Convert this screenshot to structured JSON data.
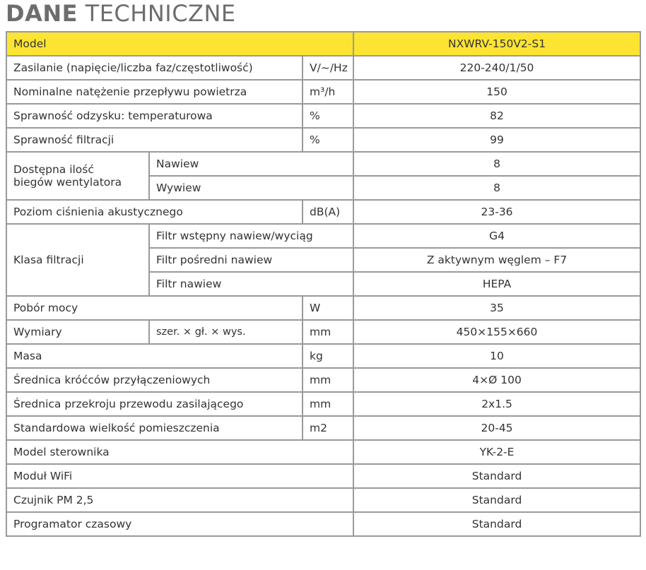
{
  "title": {
    "bold": "DANE",
    "rest": "TECHNICZNE"
  },
  "header": {
    "label": "Model",
    "value": "NXWRV-150V2-S1",
    "color": "#fde432"
  },
  "rows": {
    "zasilanie": {
      "label": "Zasilanie (napięcie/liczba faz/częstotliwość)",
      "unit": "V/~/Hz",
      "value": "220-240/1/50"
    },
    "przeplyw": {
      "label": "Nominalne natężenie przepływu powietrza",
      "unit": "m³/h",
      "value": "150"
    },
    "sprawnosc_temp": {
      "label": "Sprawność odzysku: temperaturowa",
      "unit": "%",
      "value": "82"
    },
    "sprawnosc_filtr": {
      "label": "Sprawność filtracji",
      "unit": "%",
      "value": "99"
    },
    "biegi": {
      "label": "Dostępna ilość biegów wentylatora",
      "nawiew": {
        "label": "Nawiew",
        "value": "8"
      },
      "wywiew": {
        "label": "Wywiew",
        "value": "8"
      }
    },
    "cisnienie": {
      "label": "Poziom ciśnienia akustycznego",
      "unit": "dB(A)",
      "value": "23-36"
    },
    "filtracja": {
      "label": "Klasa filtracji",
      "f1": {
        "label": "Filtr wstępny nawiew/wyciąg",
        "value": "G4"
      },
      "f2": {
        "label": "Filtr pośredni nawiew",
        "value": "Z aktywnym węglem – F7"
      },
      "f3": {
        "label": "Filtr nawiew",
        "value": "HEPA"
      }
    },
    "pobor": {
      "label": "Pobór mocy",
      "unit": "W",
      "value": "35"
    },
    "wymiary": {
      "label": "Wymiary",
      "sub": "szer. × gł. × wys.",
      "unit": "mm",
      "value": "450×155×660"
    },
    "masa": {
      "label": "Masa",
      "unit": "kg",
      "value": "10"
    },
    "krocce": {
      "label": "Średnica króćców przyłączeniowych",
      "unit": "mm",
      "value": "4×Ø 100"
    },
    "przewod": {
      "label": "Średnica przekroju przewodu zasilającego",
      "unit": "mm",
      "value": "2x1.5"
    },
    "pomieszczenie": {
      "label": "Standardowa wielkość pomieszczenia",
      "unit": "m2",
      "value": "20-45"
    },
    "sterownik": {
      "label": "Model sterownika",
      "value": "YK-2-E"
    },
    "wifi": {
      "label": "Moduł WiFi",
      "value": "Standard"
    },
    "pm": {
      "label": "Czujnik PM 2,5",
      "value": "Standard"
    },
    "programator": {
      "label": "Programator czasowy",
      "value": "Standard"
    }
  }
}
